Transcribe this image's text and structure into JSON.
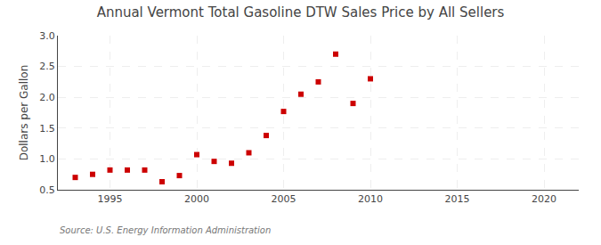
{
  "chart_data": {
    "type": "scatter",
    "title": "Annual Vermont Total Gasoline DTW Sales Price by All Sellers",
    "ylabel": "Dollars per Gallon",
    "annotation": "Source: U.S. Energy Information Administration",
    "x": [
      1993,
      1994,
      1995,
      1996,
      1997,
      1998,
      1999,
      2000,
      2001,
      2002,
      2003,
      2004,
      2005,
      2006,
      2007,
      2008,
      2009,
      2010
    ],
    "values": [
      0.7,
      0.75,
      0.82,
      0.82,
      0.82,
      0.63,
      0.73,
      1.07,
      0.96,
      0.93,
      1.1,
      1.38,
      1.77,
      2.05,
      2.25,
      2.7,
      1.9,
      2.3
    ],
    "color": "#cc0000",
    "marker": "square",
    "xlim": [
      1992,
      2022
    ],
    "ylim": [
      0.5,
      3.0
    ],
    "xticks": [
      1995,
      2000,
      2005,
      2010,
      2015,
      2020
    ],
    "yticks": [
      0.5,
      {
        "value": 1.0,
        "label": "1.0"
      },
      1.5,
      {
        "value": 2.0,
        "label": "2.0"
      },
      2.5,
      {
        "value": 3.0,
        "label": "3.0"
      }
    ],
    "grid": true
  }
}
